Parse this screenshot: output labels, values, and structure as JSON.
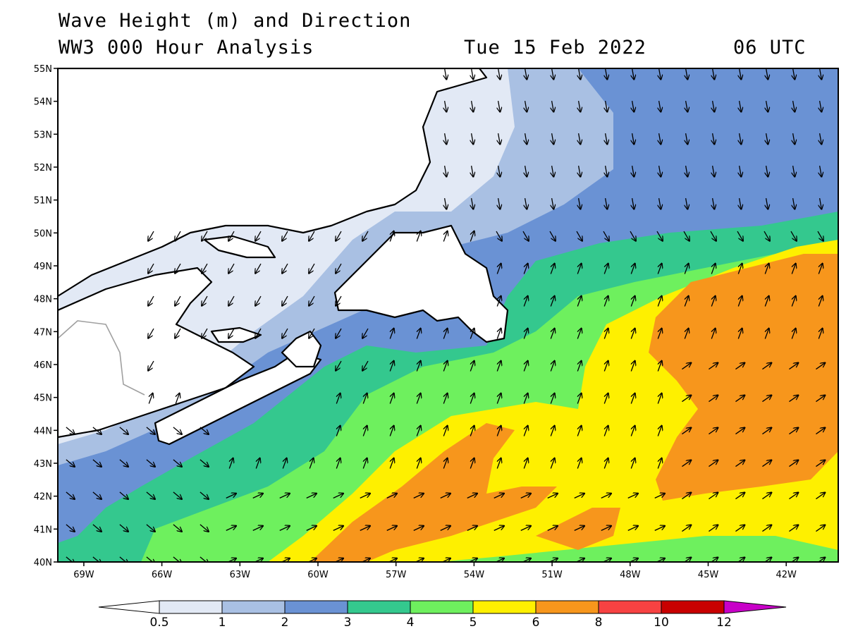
{
  "header": {
    "title": "Wave Height (m) and Direction",
    "subtitle": "WW3 000 Hour Analysis",
    "date": "Tue 15 Feb 2022",
    "time": "06 UTC"
  },
  "axes": {
    "lat_labels": [
      "55N",
      "54N",
      "53N",
      "52N",
      "51N",
      "50N",
      "49N",
      "48N",
      "47N",
      "46N",
      "45N",
      "44N",
      "43N",
      "42N",
      "41N",
      "40N"
    ],
    "lon_labels": [
      "69W",
      "66W",
      "63W",
      "60W",
      "57W",
      "54W",
      "51W",
      "48W",
      "45W",
      "42W"
    ],
    "lat_range": [
      40,
      55
    ],
    "lon_range": [
      -70,
      -40
    ]
  },
  "legend": {
    "labels": [
      "0.5",
      "1",
      "2",
      "3",
      "4",
      "5",
      "6",
      "8",
      "10",
      "12"
    ],
    "colors": [
      "#ffffff",
      "#e2e9f5",
      "#a9c0e3",
      "#6a92d4",
      "#34c88e",
      "#6ef05e",
      "#fef000",
      "#f7961c",
      "#f74242",
      "#c80000",
      "#c800c8"
    ]
  },
  "palette": {
    "land": "#ffffff",
    "coast": "#000000",
    "border": "#a0a0a0"
  }
}
